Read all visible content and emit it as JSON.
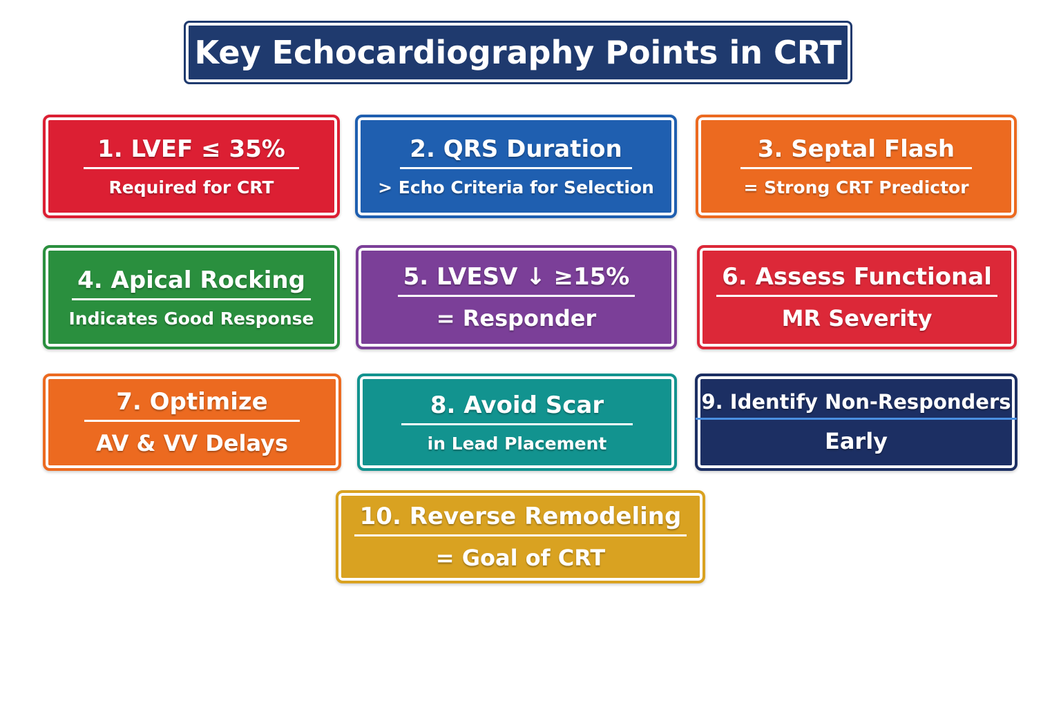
{
  "title": "Key Echocardiography Points in CRT",
  "cards": [
    {
      "heading": "1. LVEF ≤ 35%",
      "subtext": "Required for CRT"
    },
    {
      "heading": "2. QRS Duration",
      "subtext": "> Echo Criteria for Selection"
    },
    {
      "heading": "3. Septal Flash",
      "subtext": "= Strong CRT Predictor"
    },
    {
      "heading": "4. Apical Rocking",
      "subtext": "Indicates Good Response"
    },
    {
      "heading": "5. LVESV ↓ ≥15%",
      "subtext": "= Responder"
    },
    {
      "heading": "6. Assess Functional",
      "subtext": "MR Severity"
    },
    {
      "heading": "7. Optimize",
      "subtext": "AV & VV Delays"
    },
    {
      "heading": "8. Avoid Scar",
      "subtext": "in Lead Placement"
    },
    {
      "heading": "9. Identify Non-Responders",
      "subtext": "Early"
    },
    {
      "heading": "10. Reverse Remodeling",
      "subtext": "= Goal of CRT"
    }
  ]
}
